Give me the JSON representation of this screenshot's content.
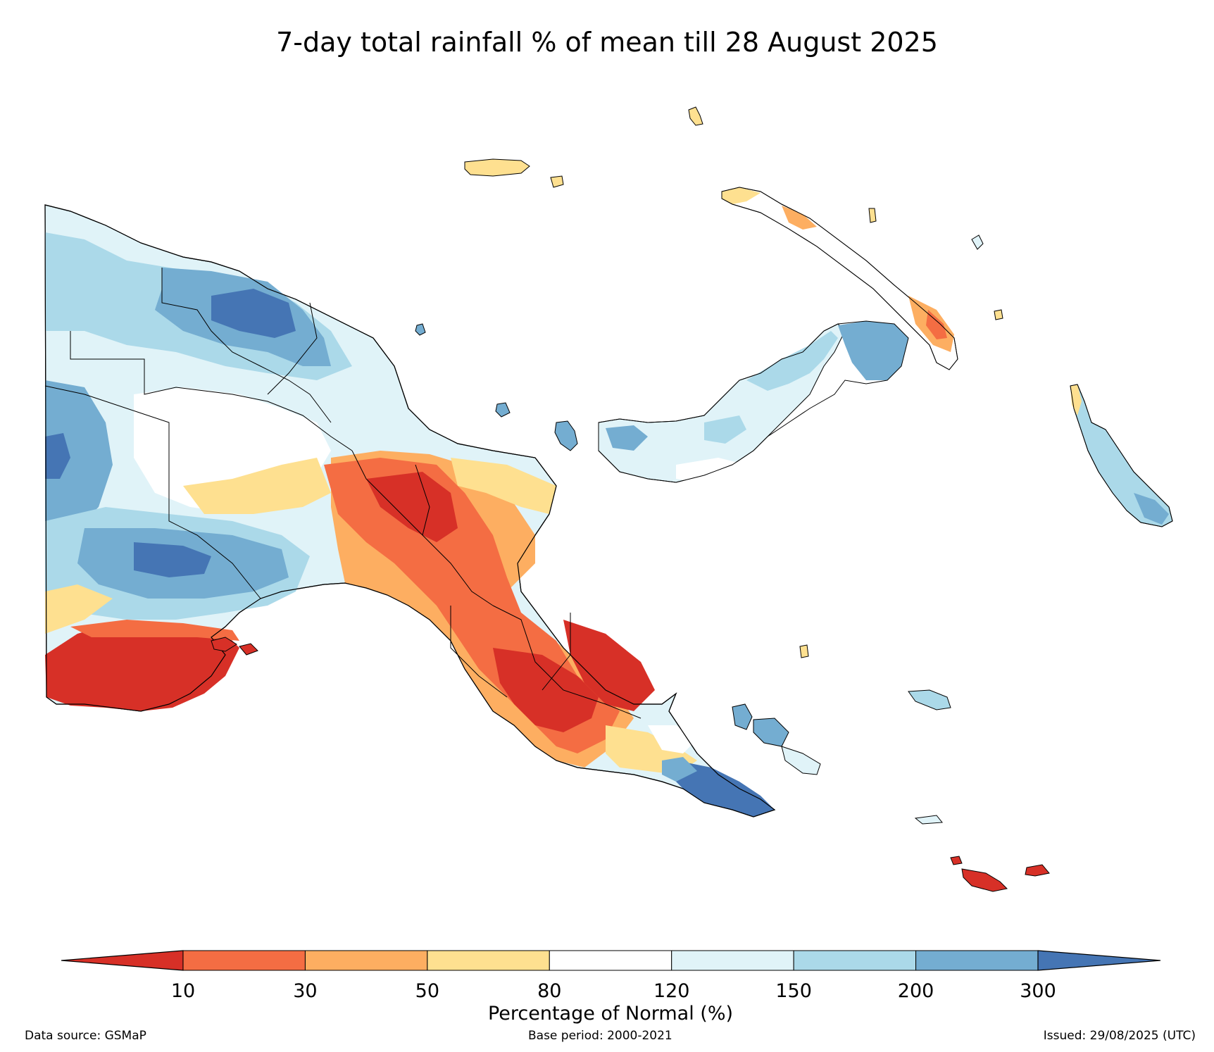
{
  "title": "7-day total rainfall % of mean till 28 August 2025",
  "colorbar": {
    "title": "Percentage of Normal (%)",
    "ticks": [
      "10",
      "30",
      "50",
      "80",
      "120",
      "150",
      "200",
      "300"
    ],
    "colors": [
      "#d73027",
      "#f46d43",
      "#fdae61",
      "#fee090",
      "#ffffff",
      "#e0f3f8",
      "#abd9e9",
      "#74add1",
      "#4575b4"
    ]
  },
  "footer": {
    "source": "Data source: GSMaP",
    "base_period": "Base period: 2000-2021",
    "issued": "Issued: 29/08/2025 (UTC)"
  }
}
